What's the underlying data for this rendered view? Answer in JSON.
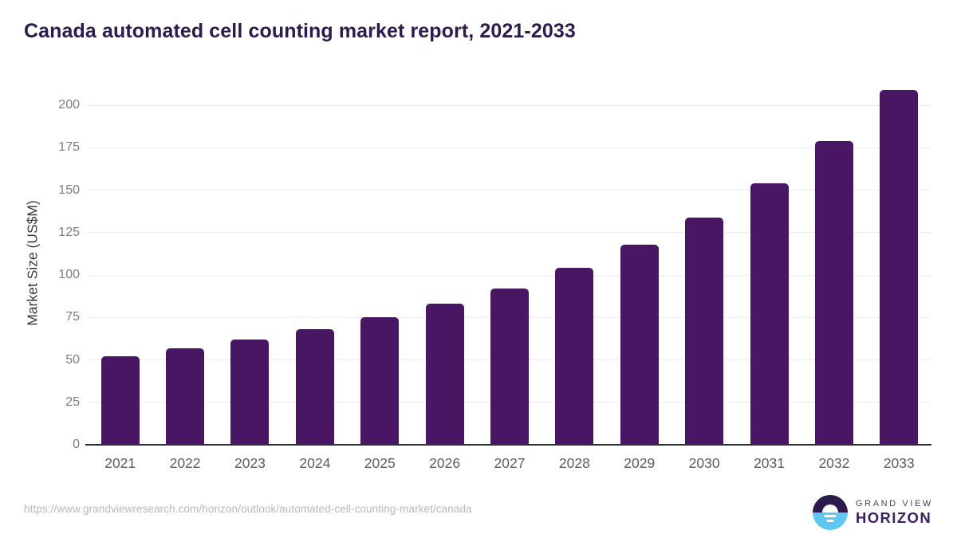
{
  "header": {
    "title": "Canada automated cell counting market report, 2021-2033"
  },
  "chart_data": {
    "type": "bar",
    "title": "Canada automated cell counting market report, 2021-2033",
    "categories": [
      "2021",
      "2022",
      "2023",
      "2024",
      "2025",
      "2026",
      "2027",
      "2028",
      "2029",
      "2030",
      "2031",
      "2032",
      "2033"
    ],
    "values": [
      52,
      57,
      62,
      68,
      75,
      83,
      92,
      104,
      118,
      134,
      154,
      179,
      209
    ],
    "xlabel": "",
    "ylabel": "Market Size (US$M)",
    "ylim": [
      0,
      213
    ],
    "yticks": [
      0,
      25,
      50,
      75,
      100,
      125,
      150,
      175,
      200
    ],
    "grid": true,
    "legend": false,
    "bar_color": "#481663"
  },
  "footer": {
    "source_url": "https://www.grandviewresearch.com/horizon/outlook/automated-cell-counting-market/canada",
    "logo": {
      "line1": "GRAND VIEW",
      "line2": "HORIZON"
    }
  },
  "colors": {
    "title": "#2e1a4e",
    "bar": "#481663",
    "grid": "#ececec",
    "axis": "#2b2b2b",
    "tick_label": "#7d7d7d",
    "axis_label": "#3c3c3c",
    "x_label": "#5d5d5d",
    "url": "#b8b8b8",
    "logo_purple": "#2c1a4d",
    "logo_blue": "#5ec8f2",
    "logo_text": "#3b2063"
  }
}
